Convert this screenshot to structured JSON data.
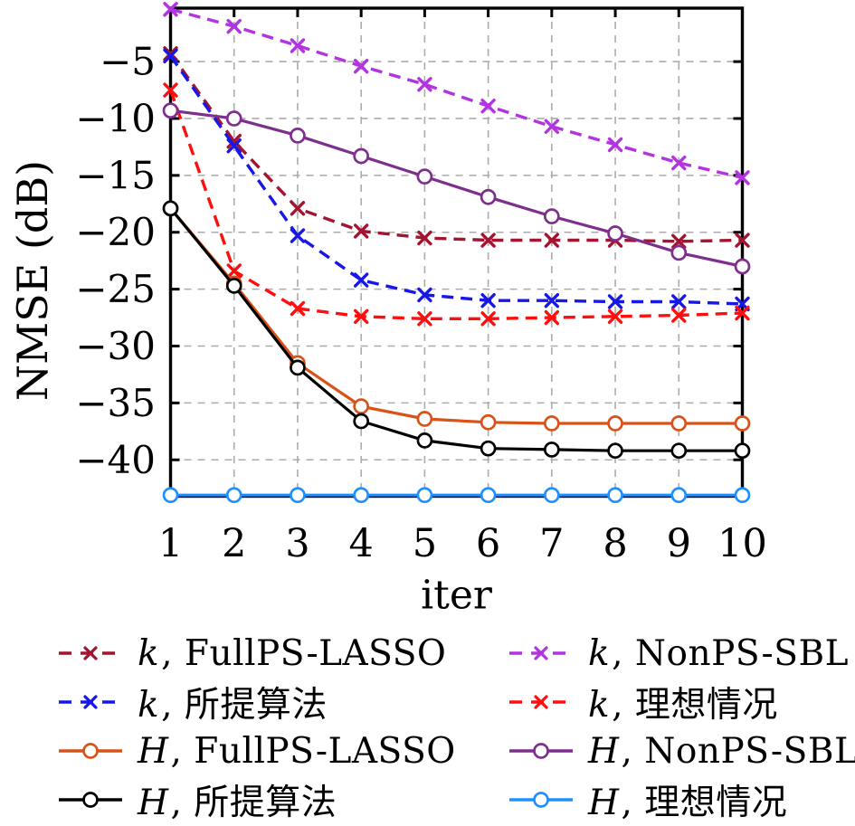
{
  "figure": {
    "background": "#FFFFFF"
  },
  "chart_data": {
    "type": "line",
    "title": "",
    "xlabel": "iter",
    "ylabel": "NMSE (dB)",
    "x": [
      1,
      2,
      3,
      4,
      5,
      6,
      7,
      8,
      9,
      10
    ],
    "xlim": [
      1,
      10
    ],
    "ylim": [
      -43.2,
      -0.3
    ],
    "xticks": [
      1,
      2,
      3,
      4,
      5,
      6,
      7,
      8,
      9,
      10
    ],
    "xtick_labels": [
      "1",
      "2",
      "3",
      "4",
      "5",
      "6",
      "7",
      "8",
      "9",
      "10"
    ],
    "yticks": [
      -5,
      -10,
      -15,
      -20,
      -25,
      -30,
      -35,
      -40
    ],
    "ytick_labels": [
      "−5",
      "−10",
      "−15",
      "−20",
      "−25",
      "−30",
      "−35",
      "−40"
    ],
    "grid": true,
    "grid_color": "#ABABAB",
    "axis_color": "#000000",
    "legend_position": "below-plot, 2 columns, no frame",
    "series": [
      {
        "name": "k-fullps-lasso",
        "legend_prefix": "k",
        "legend_suffix": ", FullPS-LASSO",
        "color": "#A2142F",
        "line": "dashed",
        "marker": "x",
        "values": [
          -4.3,
          -12.0,
          -17.9,
          -19.9,
          -20.5,
          -20.7,
          -20.7,
          -20.7,
          -20.8,
          -20.7
        ]
      },
      {
        "name": "k-nonps-sbl",
        "legend_prefix": "k",
        "legend_suffix": ", NonPS-SBL",
        "color": "#B233E0",
        "line": "dashed",
        "marker": "x",
        "values": [
          -0.4,
          -1.9,
          -3.6,
          -5.4,
          -7.0,
          -8.9,
          -10.7,
          -12.3,
          -13.9,
          -15.2
        ]
      },
      {
        "name": "k-proposed",
        "legend_prefix": "k",
        "legend_suffix": ", 所提算法",
        "color": "#1717E8",
        "line": "dashed",
        "marker": "x",
        "values": [
          -4.5,
          -12.4,
          -20.3,
          -24.2,
          -25.5,
          -26.0,
          -26.0,
          -26.1,
          -26.1,
          -26.3
        ]
      },
      {
        "name": "k-ideal",
        "legend_prefix": "k",
        "legend_suffix": ", 理想情况",
        "color": "#FF0E0E",
        "line": "dashed",
        "marker": "x",
        "values": [
          -7.5,
          -23.4,
          -26.7,
          -27.4,
          -27.6,
          -27.6,
          -27.5,
          -27.4,
          -27.3,
          -27.1
        ]
      },
      {
        "name": "H-fullps-lasso",
        "legend_prefix": "H",
        "legend_suffix": ", FullPS-LASSO",
        "color": "#D95319",
        "line": "solid",
        "marker": "circle",
        "values": [
          -17.9,
          -24.5,
          -31.5,
          -35.3,
          -36.4,
          -36.7,
          -36.8,
          -36.8,
          -36.8,
          -36.8
        ]
      },
      {
        "name": "H-nonps-sbl",
        "legend_prefix": "H",
        "legend_suffix": ", NonPS-SBL",
        "color": "#7E2F8E",
        "line": "solid",
        "marker": "circle",
        "values": [
          -9.3,
          -10.0,
          -11.5,
          -13.3,
          -15.1,
          -16.9,
          -18.6,
          -20.1,
          -21.8,
          -23.0
        ]
      },
      {
        "name": "H-proposed",
        "legend_prefix": "H",
        "legend_suffix": ", 所提算法",
        "color": "#000000",
        "line": "solid",
        "marker": "circle",
        "values": [
          -17.9,
          -24.7,
          -31.9,
          -36.6,
          -38.3,
          -39.0,
          -39.1,
          -39.2,
          -39.2,
          -39.2
        ]
      },
      {
        "name": "H-ideal",
        "legend_prefix": "H",
        "legend_suffix": ", 理想情况",
        "color": "#1E90FF",
        "line": "solid",
        "marker": "circle",
        "values": [
          -43.1,
          -43.1,
          -43.1,
          -43.1,
          -43.1,
          -43.1,
          -43.1,
          -43.1,
          -43.1,
          -43.1
        ]
      }
    ]
  }
}
